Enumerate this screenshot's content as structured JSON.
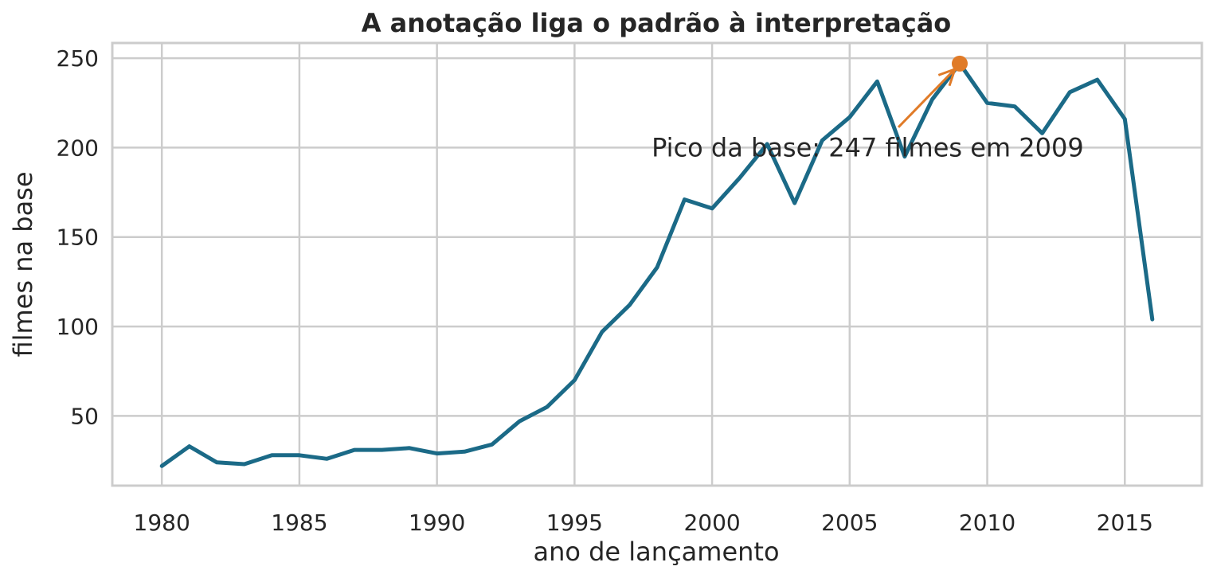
{
  "chart_data": {
    "type": "line",
    "title": "A anotação liga o padrão à interpretação",
    "xlabel": "ano de lançamento",
    "ylabel": "filmes na base",
    "xlim": [
      1978.2,
      2017.8
    ],
    "ylim": [
      11,
      258.5
    ],
    "xticks": [
      1980,
      1985,
      1990,
      1995,
      2000,
      2005,
      2010,
      2015
    ],
    "yticks": [
      50,
      100,
      150,
      200,
      250
    ],
    "grid": true,
    "legend": "none",
    "x": [
      1980,
      1981,
      1982,
      1983,
      1984,
      1985,
      1986,
      1987,
      1988,
      1989,
      1990,
      1991,
      1992,
      1993,
      1994,
      1995,
      1996,
      1997,
      1998,
      1999,
      2000,
      2001,
      2002,
      2003,
      2004,
      2005,
      2006,
      2007,
      2008,
      2009,
      2010,
      2011,
      2012,
      2013,
      2014,
      2015,
      2016
    ],
    "series": [
      {
        "values": [
          22,
          33,
          24,
          23,
          28,
          28,
          26,
          31,
          31,
          32,
          29,
          30,
          34,
          47,
          55,
          70,
          97,
          112,
          133,
          171,
          166,
          183,
          202,
          169,
          204,
          217,
          237,
          195,
          227,
          247,
          225,
          223,
          208,
          231,
          238,
          216,
          104
        ],
        "color": "#1b6a87"
      }
    ],
    "highlight": {
      "x": 2009,
      "y": 247,
      "color": "#e07b28"
    },
    "annotation": {
      "text": "Pico da base: 247 filmes em 2009",
      "text_anchor_x": 1997.8,
      "text_anchor_y": 200,
      "arrow_color": "#e07b28"
    }
  }
}
